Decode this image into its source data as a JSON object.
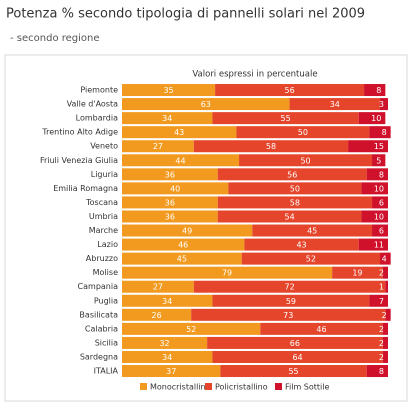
{
  "chart_data": {
    "type": "stacked-bar-horizontal",
    "title": "Potenza % secondo tipologia di pannelli solari nel 2009",
    "subtitle": "- secondo regione",
    "note": "Valori espressi in percentuale",
    "categories": [
      "Piemonte",
      "Valle d'Aosta",
      "Lombardia",
      "Trentino Alto Adige",
      "Veneto",
      "Friuli Venezia Giulia",
      "Liguria",
      "Emilia Romagna",
      "Toscana",
      "Umbria",
      "Marche",
      "Lazio",
      "Abruzzo",
      "Molise",
      "Campania",
      "Puglia",
      "Basilicata",
      "Calabria",
      "Sicilia",
      "Sardegna",
      "ITALIA"
    ],
    "series": [
      {
        "name": "Monocristallino",
        "color": "#f29a1f",
        "values": [
          35,
          63,
          34,
          43,
          27,
          44,
          36,
          40,
          36,
          36,
          49,
          46,
          45,
          79,
          27,
          34,
          26,
          52,
          32,
          34,
          37
        ]
      },
      {
        "name": "Policristallino",
        "color": "#e4452b",
        "values": [
          56,
          34,
          55,
          50,
          58,
          50,
          56,
          50,
          58,
          54,
          45,
          43,
          52,
          19,
          72,
          59,
          73,
          46,
          66,
          64,
          55
        ]
      },
      {
        "name": "Film Sottile",
        "color": "#d0112b",
        "values": [
          8,
          3,
          10,
          8,
          15,
          5,
          8,
          10,
          6,
          10,
          6,
          11,
          4,
          2,
          1,
          7,
          2,
          2,
          2,
          2,
          8
        ]
      }
    ]
  }
}
